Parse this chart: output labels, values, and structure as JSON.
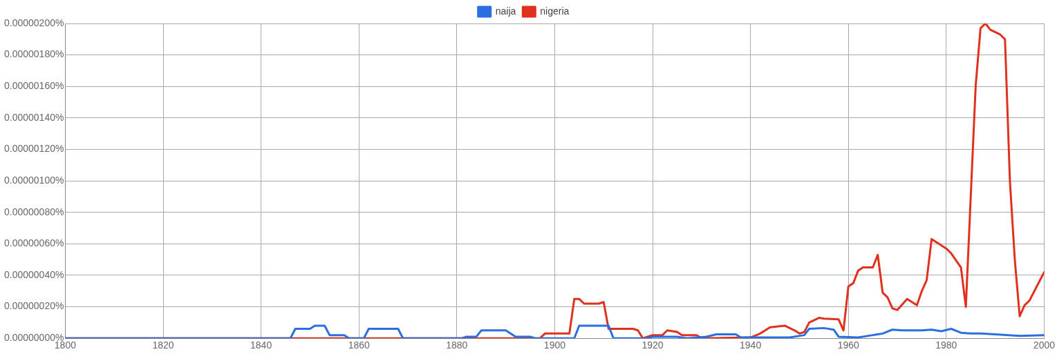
{
  "chart_data": {
    "type": "line",
    "xlim": [
      1800,
      2000
    ],
    "xticks": [
      1800,
      1820,
      1840,
      1860,
      1880,
      1900,
      1920,
      1940,
      1960,
      1980,
      2000
    ],
    "ylim": [
      0,
      2e-06
    ],
    "yticks": [
      {
        "value": 0,
        "label": "0.00000000%"
      },
      {
        "value": 2e-07,
        "label": "0.00000020%"
      },
      {
        "value": 4e-07,
        "label": "0.00000040%"
      },
      {
        "value": 6e-07,
        "label": "0.00000060%"
      },
      {
        "value": 8e-07,
        "label": "0.00000080%"
      },
      {
        "value": 1e-06,
        "label": "0.00000100%"
      },
      {
        "value": 1.2e-06,
        "label": "0.00000120%"
      },
      {
        "value": 1.4e-06,
        "label": "0.00000140%"
      },
      {
        "value": 1.6e-06,
        "label": "0.00000160%"
      },
      {
        "value": 1.8e-06,
        "label": "0.00000180%"
      },
      {
        "value": 2e-06,
        "label": "0.00000200%"
      }
    ],
    "grid": true,
    "legend": "top",
    "marker": "none",
    "line_style": "solid",
    "series": [
      {
        "name": "naija",
        "color": "#2a6fe0",
        "x": [
          1800,
          1846,
          1847,
          1850,
          1851,
          1853,
          1854,
          1857,
          1858,
          1861,
          1862,
          1868,
          1869,
          1881,
          1882,
          1884,
          1885,
          1890,
          1892,
          1895,
          1896,
          1904,
          1905,
          1911,
          1912,
          1919,
          1920,
          1925,
          1927,
          1931,
          1933,
          1937,
          1938,
          1948,
          1951,
          1952,
          1955,
          1957,
          1958,
          1962,
          1965,
          1967,
          1969,
          1971,
          1975,
          1977,
          1979,
          1981,
          1983,
          1985,
          1987,
          1990,
          1995,
          2000
        ],
        "values": [
          0,
          0,
          6e-08,
          6e-08,
          8e-08,
          8e-08,
          2e-08,
          2e-08,
          0,
          0,
          6e-08,
          6e-08,
          0,
          0,
          1e-08,
          1e-08,
          5e-08,
          5e-08,
          1e-08,
          1e-08,
          0,
          0,
          8e-08,
          8e-08,
          0,
          0,
          1e-08,
          1e-08,
          0,
          1e-08,
          2.5e-08,
          2.5e-08,
          5e-09,
          5e-09,
          2e-08,
          6e-08,
          6.5e-08,
          5.5e-08,
          1e-08,
          5e-09,
          2e-08,
          3e-08,
          5.5e-08,
          5e-08,
          5e-08,
          5.5e-08,
          4.5e-08,
          6e-08,
          3.5e-08,
          3e-08,
          3e-08,
          2.5e-08,
          1.5e-08,
          2e-08
        ]
      },
      {
        "name": "nigeria",
        "color": "#e0301e",
        "x": [
          1800,
          1897,
          1898,
          1903,
          1904,
          1905,
          1906,
          1909,
          1910,
          1911,
          1916,
          1917,
          1918,
          1920,
          1922,
          1923,
          1925,
          1926,
          1929,
          1930,
          1940,
          1942,
          1944,
          1947,
          1949,
          1950,
          1951,
          1952,
          1954,
          1955,
          1958,
          1959,
          1960,
          1961,
          1962,
          1963,
          1965,
          1966,
          1967,
          1968,
          1969,
          1970,
          1972,
          1974,
          1975,
          1976,
          1977,
          1980,
          1981,
          1983,
          1984,
          1986,
          1987,
          1988,
          1989,
          1991,
          1992,
          1993,
          1994,
          1995,
          1996,
          1997,
          2000
        ],
        "values": [
          0,
          0,
          3e-08,
          3e-08,
          2.5e-07,
          2.5e-07,
          2.2e-07,
          2.2e-07,
          2.3e-07,
          6e-08,
          6e-08,
          5e-08,
          0,
          2e-08,
          2e-08,
          5e-08,
          4e-08,
          2e-08,
          2e-08,
          0,
          5e-09,
          3e-08,
          7e-08,
          8e-08,
          5e-08,
          3e-08,
          4e-08,
          1e-07,
          1.3e-07,
          1.25e-07,
          1.2e-07,
          5e-08,
          3.3e-07,
          3.5e-07,
          4.3e-07,
          4.5e-07,
          4.5e-07,
          5.3e-07,
          2.9e-07,
          2.6e-07,
          1.9e-07,
          1.8e-07,
          2.5e-07,
          2.1e-07,
          3e-07,
          3.7e-07,
          6.3e-07,
          5.7e-07,
          5.4e-07,
          4.5e-07,
          2e-07,
          1.6e-06,
          1.97e-06,
          2e-06,
          1.96e-06,
          1.93e-06,
          1.9e-06,
          1e-06,
          5e-07,
          1.4e-07,
          2.1e-07,
          2.4e-07,
          4.2e-07
        ]
      }
    ]
  }
}
